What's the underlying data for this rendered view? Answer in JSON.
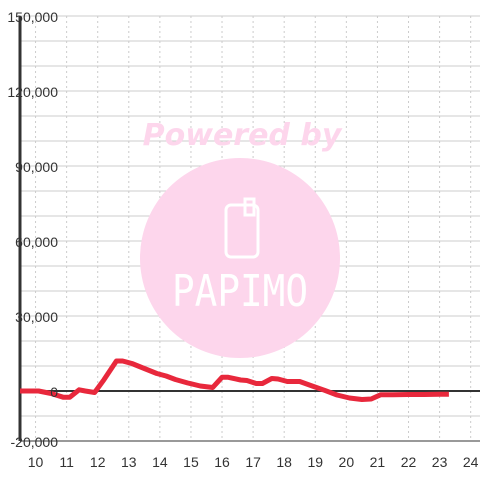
{
  "chart_data": {
    "type": "line",
    "title": "",
    "xlabel": "",
    "ylabel": "",
    "xlim": [
      9.5,
      24.3
    ],
    "ylim": [
      -20000,
      150000
    ],
    "x_ticks": [
      10,
      11,
      12,
      13,
      14,
      15,
      16,
      17,
      18,
      19,
      20,
      21,
      22,
      23,
      24
    ],
    "x_tick_labels": [
      "10",
      "11",
      "12",
      "13",
      "14",
      "15",
      "16",
      "17",
      "18",
      "19",
      "20",
      "21",
      "22",
      "23",
      "24"
    ],
    "y_ticks": [
      -20000,
      0,
      30000,
      60000,
      90000,
      120000,
      150000
    ],
    "y_tick_labels": [
      "-20,000",
      "0",
      "30,000",
      "60,000",
      "90,000",
      "120,000",
      "150,000"
    ],
    "grid": true,
    "legend": "none",
    "series": [
      {
        "color": "#e8283c",
        "x": [
          9.5,
          10.1,
          10.5,
          10.9,
          11.1,
          11.4,
          11.6,
          11.9,
          12.2,
          12.6,
          12.8,
          13.1,
          13.5,
          13.9,
          14.2,
          14.5,
          14.9,
          15.3,
          15.7,
          16.0,
          16.2,
          16.6,
          16.8,
          17.1,
          17.3,
          17.6,
          17.8,
          18.1,
          18.5,
          18.9,
          19.3,
          19.7,
          20.1,
          20.5,
          20.8,
          21.1,
          21.5,
          22.0,
          22.5,
          23.0,
          23.3
        ],
        "y": [
          0,
          0,
          -1000,
          -2500,
          -2500,
          500,
          0,
          -600,
          4500,
          12000,
          12000,
          11000,
          9000,
          7000,
          6000,
          4600,
          3200,
          2000,
          1400,
          5500,
          5500,
          4400,
          4200,
          3000,
          3000,
          5000,
          4800,
          3800,
          3800,
          2000,
          300,
          -1600,
          -2800,
          -3400,
          -3200,
          -1500,
          -1500,
          -1400,
          -1400,
          -1300,
          -1300
        ]
      }
    ]
  },
  "watermark": {
    "text": "Powered by",
    "logo_text": "PAPIMO",
    "color": "#fdd6ec"
  },
  "colors": {
    "axis": "#333333",
    "grid": "#cccccc",
    "zero_line": "#333333",
    "background": "#ffffff"
  }
}
